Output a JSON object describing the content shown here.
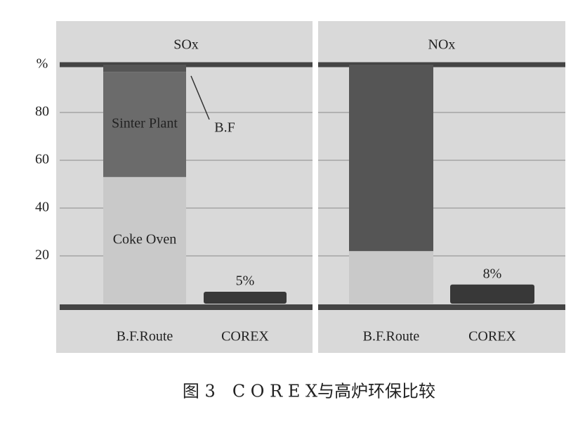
{
  "chart_data": [
    {
      "type": "bar",
      "stacked": true,
      "title": "SOx",
      "categories": [
        "B.F.Route",
        "COREX"
      ],
      "series": [
        {
          "name": "Coke Oven",
          "color": "#c9c9c9",
          "values": [
            53,
            null
          ]
        },
        {
          "name": "Sinter Plant",
          "color": "#6b6b6b",
          "values": [
            44,
            null
          ]
        },
        {
          "name": "B.F",
          "color": "#555555",
          "values": [
            3,
            null
          ]
        },
        {
          "color": "#383838",
          "values": [
            null,
            5
          ],
          "value_labels": [
            null,
            "5%"
          ]
        }
      ],
      "ylim": [
        0,
        100
      ],
      "yticks": [
        20,
        40,
        60,
        80,
        {
          "value": 100,
          "label": "%"
        }
      ],
      "grid": true
    },
    {
      "type": "bar",
      "stacked": true,
      "title": "NOx",
      "categories": [
        "B.F.Route",
        "COREX"
      ],
      "series": [
        {
          "color": "#c9c9c9",
          "values": [
            22,
            null
          ]
        },
        {
          "color": "#555555",
          "values": [
            78,
            null
          ]
        },
        {
          "color": "#383838",
          "values": [
            null,
            8
          ],
          "value_labels": [
            null,
            "8%"
          ]
        }
      ],
      "ylim": [
        0,
        100
      ],
      "yticks": [
        20,
        40,
        60,
        80,
        100
      ],
      "grid": true
    }
  ],
  "caption": "图 3　C O R E X与高炉环保比较"
}
